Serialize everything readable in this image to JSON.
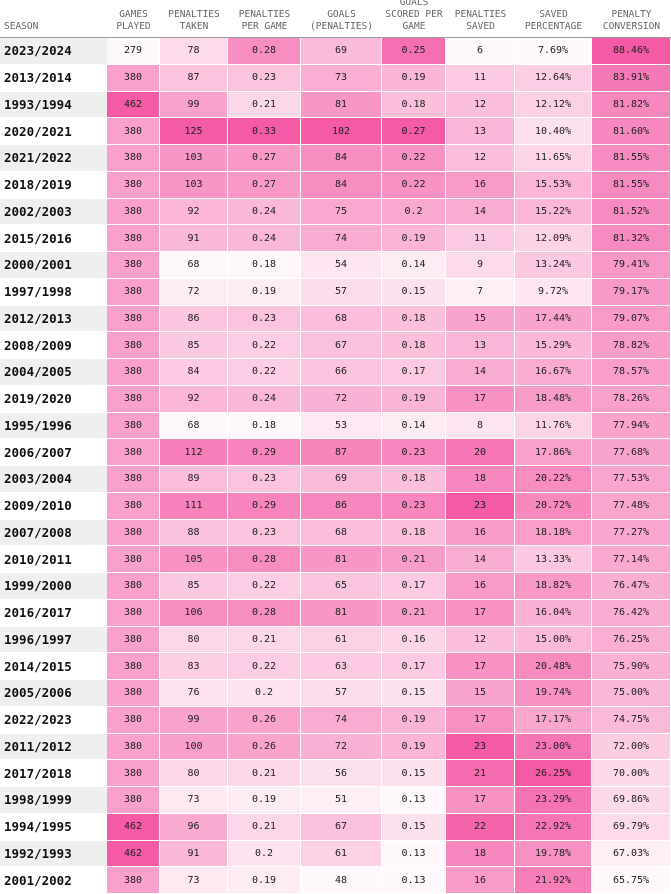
{
  "table": {
    "header": [
      "SEASON",
      "GAMES PLAYED",
      "PENALTIES TAKEN",
      "PENALTIES PER GAME",
      "GOALS (PENALTIES)",
      "GOALS SCORED PER GAME",
      "PENALTIES SAVED",
      "SAVED PERCENTAGE",
      "PENALTY CONVERSION"
    ],
    "rows": [
      [
        "2023/2024",
        "279",
        "78",
        "0.28",
        "69",
        "0.25",
        "6",
        "7.69%",
        "88.46%"
      ],
      [
        "2013/2014",
        "380",
        "87",
        "0.23",
        "73",
        "0.19",
        "11",
        "12.64%",
        "83.91%"
      ],
      [
        "1993/1994",
        "462",
        "99",
        "0.21",
        "81",
        "0.18",
        "12",
        "12.12%",
        "81.82%"
      ],
      [
        "2020/2021",
        "380",
        "125",
        "0.33",
        "102",
        "0.27",
        "13",
        "10.40%",
        "81.60%"
      ],
      [
        "2021/2022",
        "380",
        "103",
        "0.27",
        "84",
        "0.22",
        "12",
        "11.65%",
        "81.55%"
      ],
      [
        "2018/2019",
        "380",
        "103",
        "0.27",
        "84",
        "0.22",
        "16",
        "15.53%",
        "81.55%"
      ],
      [
        "2002/2003",
        "380",
        "92",
        "0.24",
        "75",
        "0.2",
        "14",
        "15.22%",
        "81.52%"
      ],
      [
        "2015/2016",
        "380",
        "91",
        "0.24",
        "74",
        "0.19",
        "11",
        "12.09%",
        "81.32%"
      ],
      [
        "2000/2001",
        "380",
        "68",
        "0.18",
        "54",
        "0.14",
        "9",
        "13.24%",
        "79.41%"
      ],
      [
        "1997/1998",
        "380",
        "72",
        "0.19",
        "57",
        "0.15",
        "7",
        "9.72%",
        "79.17%"
      ],
      [
        "2012/2013",
        "380",
        "86",
        "0.23",
        "68",
        "0.18",
        "15",
        "17.44%",
        "79.07%"
      ],
      [
        "2008/2009",
        "380",
        "85",
        "0.22",
        "67",
        "0.18",
        "13",
        "15.29%",
        "78.82%"
      ],
      [
        "2004/2005",
        "380",
        "84",
        "0.22",
        "66",
        "0.17",
        "14",
        "16.67%",
        "78.57%"
      ],
      [
        "2019/2020",
        "380",
        "92",
        "0.24",
        "72",
        "0.19",
        "17",
        "18.48%",
        "78.26%"
      ],
      [
        "1995/1996",
        "380",
        "68",
        "0.18",
        "53",
        "0.14",
        "8",
        "11.76%",
        "77.94%"
      ],
      [
        "2006/2007",
        "380",
        "112",
        "0.29",
        "87",
        "0.23",
        "20",
        "17.86%",
        "77.68%"
      ],
      [
        "2003/2004",
        "380",
        "89",
        "0.23",
        "69",
        "0.18",
        "18",
        "20.22%",
        "77.53%"
      ],
      [
        "2009/2010",
        "380",
        "111",
        "0.29",
        "86",
        "0.23",
        "23",
        "20.72%",
        "77.48%"
      ],
      [
        "2007/2008",
        "380",
        "88",
        "0.23",
        "68",
        "0.18",
        "16",
        "18.18%",
        "77.27%"
      ],
      [
        "2010/2011",
        "380",
        "105",
        "0.28",
        "81",
        "0.21",
        "14",
        "13.33%",
        "77.14%"
      ],
      [
        "1999/2000",
        "380",
        "85",
        "0.22",
        "65",
        "0.17",
        "16",
        "18.82%",
        "76.47%"
      ],
      [
        "2016/2017",
        "380",
        "106",
        "0.28",
        "81",
        "0.21",
        "17",
        "16.04%",
        "76.42%"
      ],
      [
        "1996/1997",
        "380",
        "80",
        "0.21",
        "61",
        "0.16",
        "12",
        "15.00%",
        "76.25%"
      ],
      [
        "2014/2015",
        "380",
        "83",
        "0.22",
        "63",
        "0.17",
        "17",
        "20.48%",
        "75.90%"
      ],
      [
        "2005/2006",
        "380",
        "76",
        "0.2",
        "57",
        "0.15",
        "15",
        "19.74%",
        "75.00%"
      ],
      [
        "2022/2023",
        "380",
        "99",
        "0.26",
        "74",
        "0.19",
        "17",
        "17.17%",
        "74.75%"
      ],
      [
        "2011/2012",
        "380",
        "100",
        "0.26",
        "72",
        "0.19",
        "23",
        "23.00%",
        "72.00%"
      ],
      [
        "2017/2018",
        "380",
        "80",
        "0.21",
        "56",
        "0.15",
        "21",
        "26.25%",
        "70.00%"
      ],
      [
        "1998/1999",
        "380",
        "73",
        "0.19",
        "51",
        "0.13",
        "17",
        "23.29%",
        "69.86%"
      ],
      [
        "1994/1995",
        "462",
        "96",
        "0.21",
        "67",
        "0.15",
        "22",
        "22.92%",
        "69.79%"
      ],
      [
        "1992/1993",
        "462",
        "91",
        "0.2",
        "61",
        "0.13",
        "18",
        "19.78%",
        "67.03%"
      ],
      [
        "2001/2002",
        "380",
        "73",
        "0.19",
        "48",
        "0.13",
        "16",
        "21.92%",
        "65.75%"
      ]
    ]
  }
}
